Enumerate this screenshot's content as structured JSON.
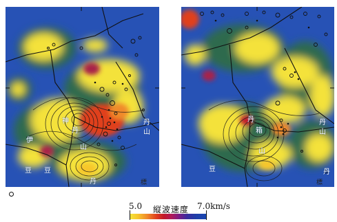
{
  "colorbar": {
    "min_label": "5.0",
    "title": "縦波速度",
    "max_label": "7.0km/s",
    "min_value": 5.0,
    "max_value": 7.0,
    "unit": "km/s"
  },
  "chart_data": [
    {
      "type": "heatmap",
      "panel": "left",
      "value_range": [
        5.0,
        7.0
      ],
      "labels": [
        "神",
        "伊",
        "豆",
        "丹",
        "山",
        "丹",
        "山",
        "豆",
        "丹"
      ],
      "corner_mark": "標"
    },
    {
      "type": "heatmap",
      "panel": "right",
      "value_range": [
        5.0,
        7.0
      ],
      "labels": [
        "丹",
        "山",
        "箱",
        "豆",
        "丹",
        "丹",
        "山"
      ],
      "corner_mark": "標"
    }
  ],
  "colors": {
    "low_velocity": "#f4e23a",
    "mid_velocity": "#d8261f",
    "high_velocity": "#1f3ea8",
    "background": "#2752b5",
    "transition": "#2f6a4e"
  }
}
